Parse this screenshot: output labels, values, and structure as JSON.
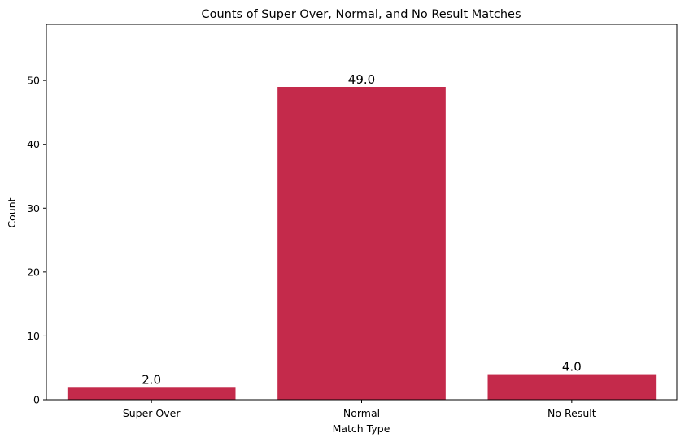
{
  "chart_data": {
    "type": "bar",
    "title": "Counts of Super Over, Normal, and No Result Matches",
    "xlabel": "Match Type",
    "ylabel": "Count",
    "categories": [
      "Super Over",
      "Normal",
      "No Result"
    ],
    "values": [
      2,
      49,
      4
    ],
    "data_labels": [
      "2.0",
      "49.0",
      "4.0"
    ],
    "ylim": [
      0,
      58.8
    ],
    "yticks": [
      0,
      10,
      20,
      30,
      40,
      50
    ],
    "grid": false,
    "legend": "none",
    "bar_color": "#c42a4b"
  }
}
